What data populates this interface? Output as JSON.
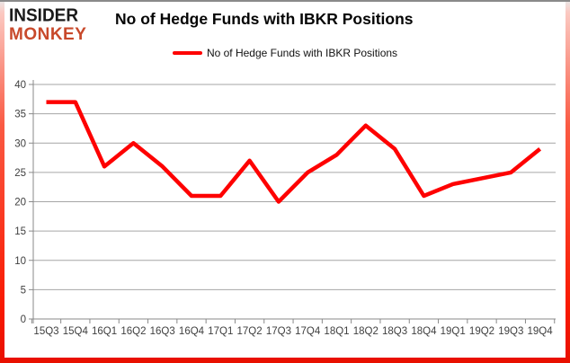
{
  "branding": {
    "logo_line1": "INSIDER",
    "logo_line2": "MONKEY"
  },
  "header": {
    "title": "No of Hedge Funds with IBKR Positions"
  },
  "legend": {
    "label": "No of Hedge Funds with IBKR Positions"
  },
  "chart_data": {
    "type": "line",
    "title": "No of Hedge Funds with IBKR Positions",
    "categories": [
      "15Q3",
      "15Q4",
      "16Q1",
      "16Q2",
      "16Q3",
      "16Q4",
      "17Q1",
      "17Q2",
      "17Q3",
      "17Q4",
      "18Q1",
      "18Q2",
      "18Q3",
      "18Q4",
      "19Q1",
      "19Q2",
      "19Q3",
      "19Q4"
    ],
    "series": [
      {
        "name": "No of Hedge Funds with IBKR Positions",
        "color": "#fe0000",
        "values": [
          37,
          37,
          26,
          30,
          26,
          21,
          21,
          27,
          20,
          25,
          28,
          33,
          29,
          21,
          23,
          24,
          25,
          29
        ]
      }
    ],
    "xlabel": "",
    "ylabel": "",
    "ylim": [
      0,
      40
    ],
    "yticks": [
      0,
      5,
      10,
      15,
      20,
      25,
      30,
      35,
      40
    ],
    "grid": true,
    "legend_position": "top"
  },
  "colors": {
    "series_line": "#fe0000",
    "gridline": "#a6a6a6",
    "axis": "#898989",
    "tick_label": "#3f3f3f",
    "frame_red": "#f91a02",
    "frame_top_gray": "#8a8a8a",
    "logo_black": "#1a1a1a",
    "logo_red": "#c8492b"
  }
}
